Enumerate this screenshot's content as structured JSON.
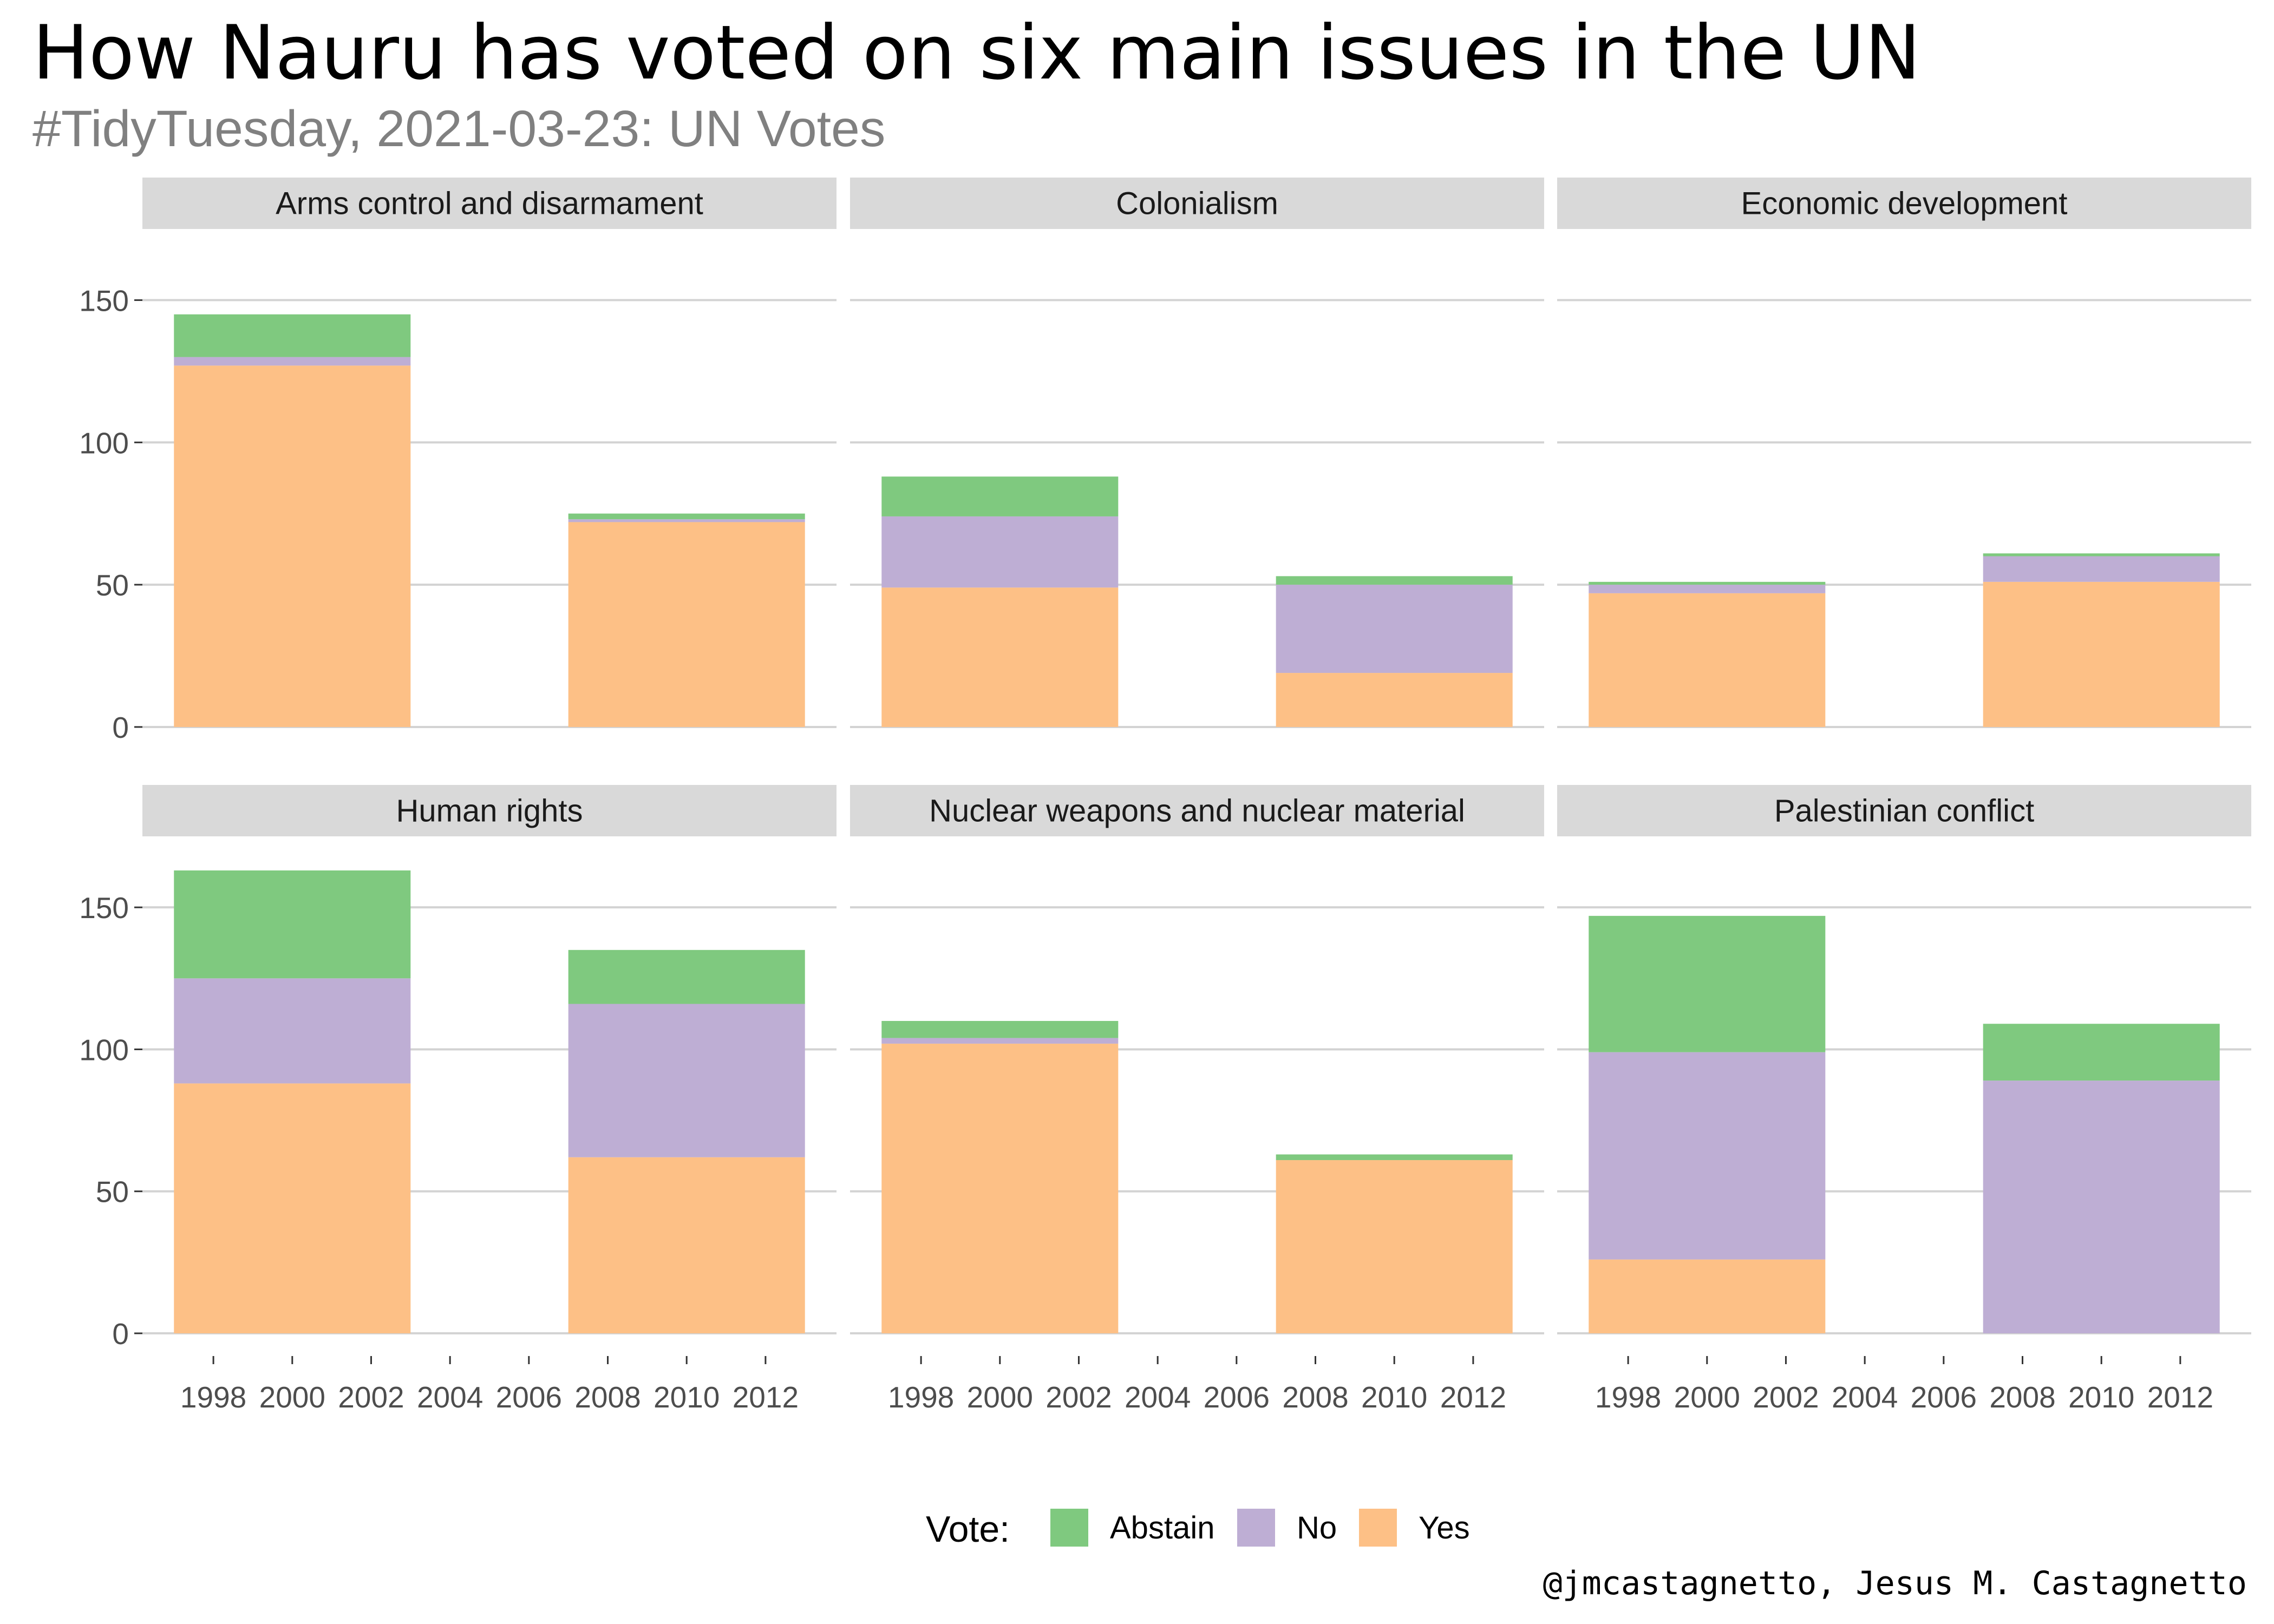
{
  "title": "How Nauru has voted on six main issues in the UN",
  "subtitle": "#TidyTuesday, 2021-03-23: UN Votes",
  "caption": "@jmcastagnetto, Jesus M. Castagnetto",
  "colors": {
    "Abstain": "#7fc97f",
    "No": "#beaed4",
    "Yes": "#fdc086",
    "strip_bg": "#d9d9d9",
    "grid": "#d3d3d3",
    "axis_text": "#4d4d4d",
    "subtitle": "#808080"
  },
  "chart_data": {
    "type": "bar",
    "stacked": true,
    "facet_layout": "3 columns x 2 rows",
    "x_ticks": [
      "1998",
      "2000",
      "2002",
      "2004",
      "2006",
      "2008",
      "2010",
      "2012"
    ],
    "xlim": [
      1996.2,
      2013.8
    ],
    "bar_width_years": 6,
    "y_ticks": [
      "0",
      "50",
      "100",
      "150"
    ],
    "ylim": [
      -8,
      175
    ],
    "grid": true,
    "legend": {
      "title": "Vote:",
      "position": "bottom",
      "items": [
        "Abstain",
        "No",
        "Yes"
      ]
    },
    "panels": [
      {
        "issue": "Arms control and disarmament",
        "bars": [
          {
            "x": 2000,
            "Yes": 127,
            "No": 3,
            "Abstain": 15
          },
          {
            "x": 2010,
            "Yes": 72,
            "No": 1,
            "Abstain": 2
          }
        ]
      },
      {
        "issue": "Colonialism",
        "bars": [
          {
            "x": 2000,
            "Yes": 49,
            "No": 25,
            "Abstain": 14
          },
          {
            "x": 2010,
            "Yes": 19,
            "No": 31,
            "Abstain": 3
          }
        ]
      },
      {
        "issue": "Economic development",
        "bars": [
          {
            "x": 2000,
            "Yes": 47,
            "No": 3,
            "Abstain": 1
          },
          {
            "x": 2010,
            "Yes": 51,
            "No": 9,
            "Abstain": 1
          }
        ]
      },
      {
        "issue": "Human rights",
        "bars": [
          {
            "x": 2000,
            "Yes": 88,
            "No": 37,
            "Abstain": 38
          },
          {
            "x": 2010,
            "Yes": 62,
            "No": 54,
            "Abstain": 19
          }
        ]
      },
      {
        "issue": "Nuclear weapons and nuclear material",
        "bars": [
          {
            "x": 2000,
            "Yes": 102,
            "No": 2,
            "Abstain": 6
          },
          {
            "x": 2010,
            "Yes": 61,
            "No": 0,
            "Abstain": 2
          }
        ]
      },
      {
        "issue": "Palestinian conflict",
        "bars": [
          {
            "x": 2000,
            "Yes": 26,
            "No": 73,
            "Abstain": 48
          },
          {
            "x": 2010,
            "Yes": 0,
            "No": 89,
            "Abstain": 20
          }
        ]
      }
    ]
  }
}
